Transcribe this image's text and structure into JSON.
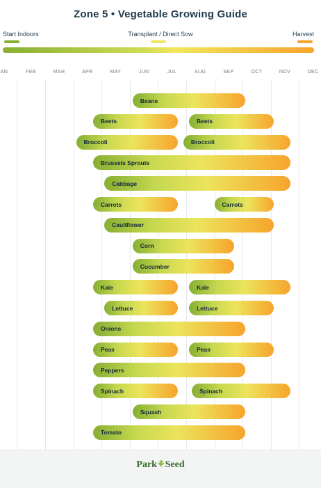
{
  "title": "Zone 5 • Vegetable Growing Guide",
  "legend": [
    {
      "label": "Start Indoors",
      "color": "#86ae33"
    },
    {
      "label": "Transplant / Direct Sow",
      "color": "#f0e65c"
    },
    {
      "label": "Harvest",
      "color": "#f7a42c"
    }
  ],
  "months": [
    "JAN",
    "FEB",
    "MAR",
    "APR",
    "MAY",
    "JUN",
    "JUL",
    "AUG",
    "SEP",
    "OCT",
    "NOV",
    "DEC"
  ],
  "rows": [
    {
      "bars": [
        {
          "label": "Beans",
          "start": 4.6,
          "end": 8.6
        }
      ]
    },
    {
      "bars": [
        {
          "label": "Beets",
          "start": 3.2,
          "end": 6.2
        },
        {
          "label": "Beets",
          "start": 6.6,
          "end": 9.6
        }
      ]
    },
    {
      "bars": [
        {
          "label": "Broccoli",
          "start": 2.6,
          "end": 6.2
        },
        {
          "label": "Broccoli",
          "start": 6.4,
          "end": 10.2
        }
      ]
    },
    {
      "bars": [
        {
          "label": "Brussels Sprouts",
          "start": 3.2,
          "end": 10.2
        }
      ]
    },
    {
      "bars": [
        {
          "label": "Cabbage",
          "start": 3.6,
          "end": 10.2
        }
      ]
    },
    {
      "bars": [
        {
          "label": "Carrots",
          "start": 3.2,
          "end": 6.2
        },
        {
          "label": "Carrots",
          "start": 7.5,
          "end": 9.6
        }
      ]
    },
    {
      "bars": [
        {
          "label": "Cauliflower",
          "start": 3.6,
          "end": 9.6
        }
      ]
    },
    {
      "bars": [
        {
          "label": "Corn",
          "start": 4.6,
          "end": 8.2
        }
      ]
    },
    {
      "bars": [
        {
          "label": "Cucumber",
          "start": 4.6,
          "end": 8.2
        }
      ]
    },
    {
      "bars": [
        {
          "label": "Kale",
          "start": 3.2,
          "end": 6.2
        },
        {
          "label": "Kale",
          "start": 6.6,
          "end": 10.2
        }
      ]
    },
    {
      "bars": [
        {
          "label": "Lettuce",
          "start": 3.6,
          "end": 6.2
        },
        {
          "label": "Lettuce",
          "start": 6.6,
          "end": 9.6
        }
      ]
    },
    {
      "bars": [
        {
          "label": "Onions",
          "start": 3.2,
          "end": 8.6
        }
      ]
    },
    {
      "bars": [
        {
          "label": "Peas",
          "start": 3.2,
          "end": 6.2
        },
        {
          "label": "Peas",
          "start": 6.6,
          "end": 9.6
        }
      ]
    },
    {
      "bars": [
        {
          "label": "Peppers",
          "start": 3.2,
          "end": 8.6
        }
      ]
    },
    {
      "bars": [
        {
          "label": "Spinach",
          "start": 3.2,
          "end": 6.2
        },
        {
          "label": "Spinach",
          "start": 6.7,
          "end": 10.2
        }
      ]
    },
    {
      "bars": [
        {
          "label": "Squash",
          "start": 4.6,
          "end": 8.6
        }
      ]
    },
    {
      "bars": [
        {
          "label": "Tomato",
          "start": 3.2,
          "end": 8.6
        }
      ]
    }
  ],
  "footer": {
    "logo_part1": "Park",
    "logo_part2": "Seed"
  }
}
